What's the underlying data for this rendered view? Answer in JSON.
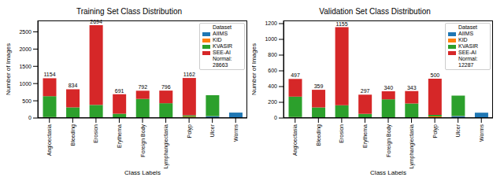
{
  "chart_data": [
    {
      "type": "bar",
      "title": "Training Set Class Distribution",
      "x_label": "Class Labels",
      "y_label": "Number of Images",
      "categories": [
        "Angioectasia",
        "Bleeding",
        "Erosion",
        "Erythema",
        "Foreign Body",
        "Lymphangiectasia",
        "Polyp",
        "Ulcer",
        "Worms"
      ],
      "series": [
        {
          "name": "AIIMS",
          "color": "#1f77b4",
          "values": [
            0,
            0,
            0,
            0,
            0,
            0,
            0,
            50,
            158
          ]
        },
        {
          "name": "KID",
          "color": "#ff7f0e",
          "values": [
            27,
            10,
            5,
            5,
            5,
            10,
            40,
            5,
            0
          ]
        },
        {
          "name": "KVASIR",
          "color": "#2ca02c",
          "values": [
            607,
            300,
            375,
            120,
            550,
            420,
            40,
            608,
            0
          ]
        },
        {
          "name": "SEE-AI",
          "color": "#d62728",
          "values": [
            520,
            524,
            2314,
            566,
            237,
            366,
            1082,
            0,
            0
          ]
        }
      ],
      "totals": [
        1154,
        834,
        2694,
        691,
        792,
        796,
        1162,
        663,
        158
      ],
      "legend_title": "Dataset",
      "annotation": "Normal: 28663",
      "ylim": [
        0,
        2830
      ],
      "yticks": [
        0,
        500,
        1000,
        1500,
        2000,
        2500
      ],
      "stacked": true,
      "grid": false,
      "legend": "upper right"
    },
    {
      "type": "bar",
      "title": "Validation Set Class Distribution",
      "x_label": "Class Labels",
      "y_label": "Number of Images",
      "categories": [
        "Angioectasia",
        "Bleeding",
        "Erosion",
        "Erythema",
        "Foreign Body",
        "Lymphangiectasia",
        "Polyp",
        "Ulcer",
        "Worms"
      ],
      "series": [
        {
          "name": "AIIMS",
          "color": "#1f77b4",
          "values": [
            0,
            0,
            0,
            0,
            0,
            0,
            0,
            25,
            68
          ]
        },
        {
          "name": "KID",
          "color": "#ff7f0e",
          "values": [
            12,
            5,
            3,
            3,
            3,
            5,
            20,
            3,
            0
          ]
        },
        {
          "name": "KVASIR",
          "color": "#2ca02c",
          "values": [
            260,
            130,
            160,
            50,
            235,
            180,
            20,
            258,
            0
          ]
        },
        {
          "name": "SEE-AI",
          "color": "#d62728",
          "values": [
            225,
            224,
            992,
            244,
            102,
            158,
            460,
            0,
            0
          ]
        }
      ],
      "totals": [
        497,
        359,
        1155,
        297,
        340,
        343,
        500,
        286,
        68
      ],
      "legend_title": "Dataset",
      "annotation": "Normal: 12287",
      "ylim": [
        0,
        1240
      ],
      "yticks": [
        0,
        200,
        400,
        600,
        800,
        1000,
        1200
      ],
      "stacked": true,
      "grid": false,
      "legend": "upper right"
    }
  ]
}
